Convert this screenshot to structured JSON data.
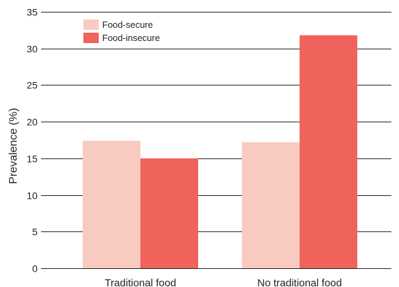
{
  "chart_data": {
    "type": "bar",
    "title": "",
    "xlabel": "",
    "ylabel": "Prevalence (%)",
    "ylim": [
      0,
      35
    ],
    "yticks": [
      0,
      5,
      10,
      15,
      20,
      25,
      30,
      35
    ],
    "grid": true,
    "legend_position": "top-left",
    "categories": [
      "Traditional food",
      "No traditional food"
    ],
    "series": [
      {
        "name": "Food-secure",
        "values": [
          17.4,
          17.2
        ],
        "color": "#f9cac0"
      },
      {
        "name": "Food-insecure",
        "values": [
          15.0,
          31.8
        ],
        "color": "#f0635c"
      }
    ]
  }
}
